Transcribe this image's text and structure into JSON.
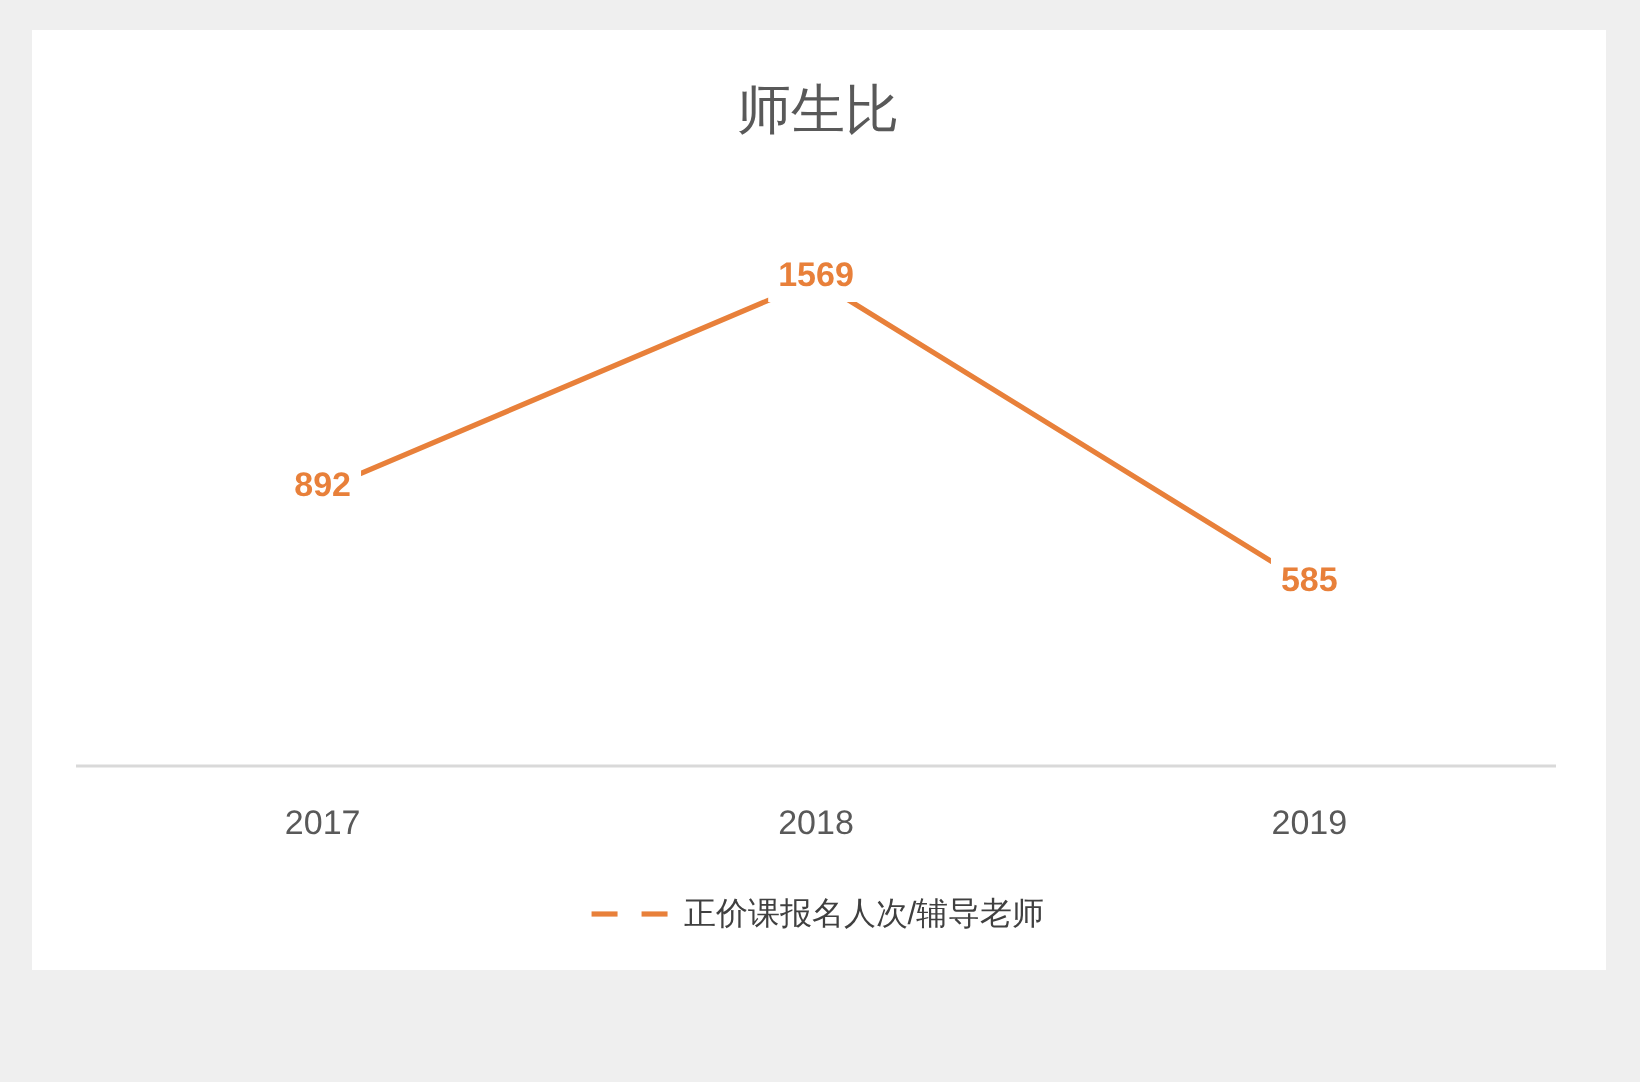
{
  "chart_data": {
    "type": "line",
    "title": "师生比",
    "categories": [
      "2017",
      "2018",
      "2019"
    ],
    "series": [
      {
        "name": "正价课报名人次/辅导老师",
        "color": "#e8803a",
        "values": [
          892,
          1569,
          585
        ]
      }
    ],
    "data_labels": true,
    "legend": "bottom"
  }
}
